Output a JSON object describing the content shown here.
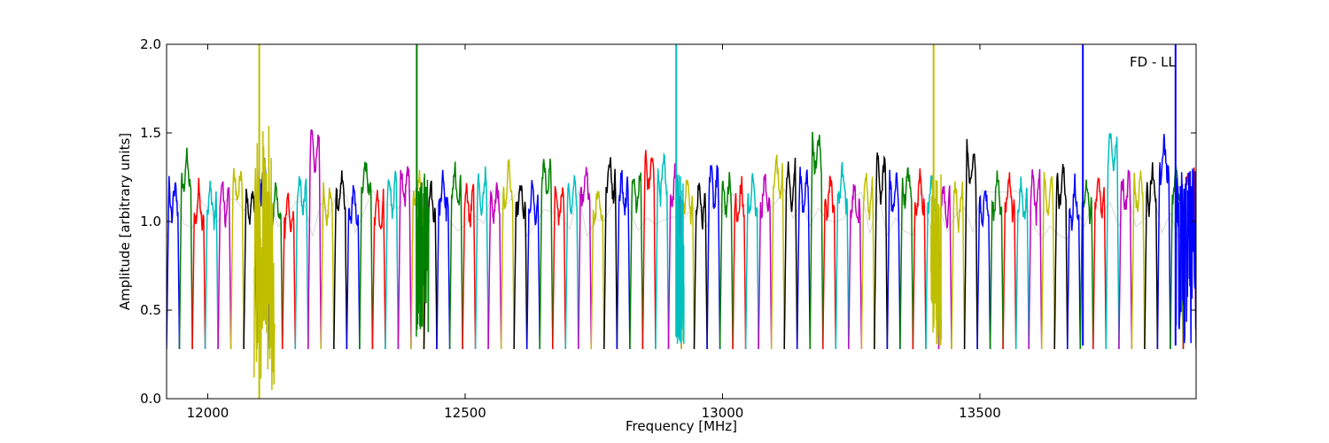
{
  "chart_data": {
    "type": "line",
    "title": "",
    "xlabel": "Frequency [MHz]",
    "ylabel": "Amplitude [arbitrary units]",
    "xlim": [
      11920,
      13920
    ],
    "ylim": [
      0.0,
      2.0
    ],
    "x_ticks": [
      12000,
      12500,
      13000,
      13500
    ],
    "x_tick_labels": [
      "12000",
      "12500",
      "13000",
      "13500"
    ],
    "y_ticks": [
      0.0,
      0.5,
      1.0,
      1.5,
      2.0
    ],
    "y_tick_labels": [
      "0.0",
      "0.5",
      "1.0",
      "1.5",
      "2.0"
    ],
    "grid": false,
    "legend": "none",
    "annotation": "FD - LL",
    "colors": [
      "#0000ff",
      "#008000",
      "#ff0000",
      "#00bfbf",
      "#bf00bf",
      "#bfbf00",
      "#000000"
    ],
    "noise_color": "#bebebe",
    "channel_start": 11920,
    "channel_width": 25,
    "channel_count": 80,
    "channel_levels": [
      1.22,
      1.38,
      1.18,
      1.2,
      1.22,
      1.3,
      1.2,
      1.35,
      1.2,
      1.15,
      1.25,
      1.5,
      1.2,
      1.25,
      1.2,
      1.35,
      1.15,
      1.25,
      1.3,
      1.25,
      1.2,
      1.25,
      1.3,
      1.2,
      1.25,
      1.2,
      1.3,
      1.25,
      1.2,
      1.35,
      1.2,
      1.25,
      1.3,
      1.2,
      1.35,
      1.25,
      1.25,
      1.38,
      1.35,
      1.3,
      1.25,
      1.2,
      1.3,
      1.25,
      1.2,
      1.25,
      1.25,
      1.35,
      1.3,
      1.25,
      1.48,
      1.25,
      1.3,
      1.2,
      1.25,
      1.35,
      1.25,
      1.3,
      1.25,
      1.25,
      1.2,
      1.2,
      1.4,
      1.2,
      1.25,
      1.25,
      1.2,
      1.25,
      1.25,
      1.3,
      1.2,
      1.25,
      1.25,
      1.5,
      1.25,
      1.25,
      1.3,
      1.45,
      1.3,
      1.28
    ],
    "dip_level": 0.28,
    "spikes": [
      {
        "x": 12100,
        "ymin": 0.0,
        "ymax": 2.0,
        "color": "#bfbf00"
      },
      {
        "x": 12406,
        "ymin": 0.4,
        "ymax": 2.0,
        "color": "#008000"
      },
      {
        "x": 12910,
        "ymin": 0.35,
        "ymax": 2.0,
        "color": "#00bfbf"
      },
      {
        "x": 13410,
        "ymin": 0.4,
        "ymax": 2.0,
        "color": "#bfbf00"
      },
      {
        "x": 13700,
        "ymin": 0.3,
        "ymax": 2.0,
        "color": "#0000ff"
      },
      {
        "x": 13880,
        "ymin": 0.3,
        "ymax": 2.0,
        "color": "#0000ff"
      }
    ],
    "noise_regions": [
      {
        "x0": 12090,
        "x1": 12130,
        "ymin": 0.0,
        "ymax": 1.55,
        "color": "#bfbf00"
      },
      {
        "x0": 12405,
        "x1": 12430,
        "ymin": 0.35,
        "ymax": 1.3,
        "color": "#008000"
      },
      {
        "x0": 12910,
        "x1": 12925,
        "ymin": 0.3,
        "ymax": 1.3,
        "color": "#00bfbf"
      },
      {
        "x0": 13405,
        "x1": 13425,
        "ymin": 0.3,
        "ymax": 1.3,
        "color": "#bfbf00"
      },
      {
        "x0": 13880,
        "x1": 13920,
        "ymin": 0.3,
        "ymax": 1.3,
        "color": "#0000ff"
      }
    ]
  }
}
